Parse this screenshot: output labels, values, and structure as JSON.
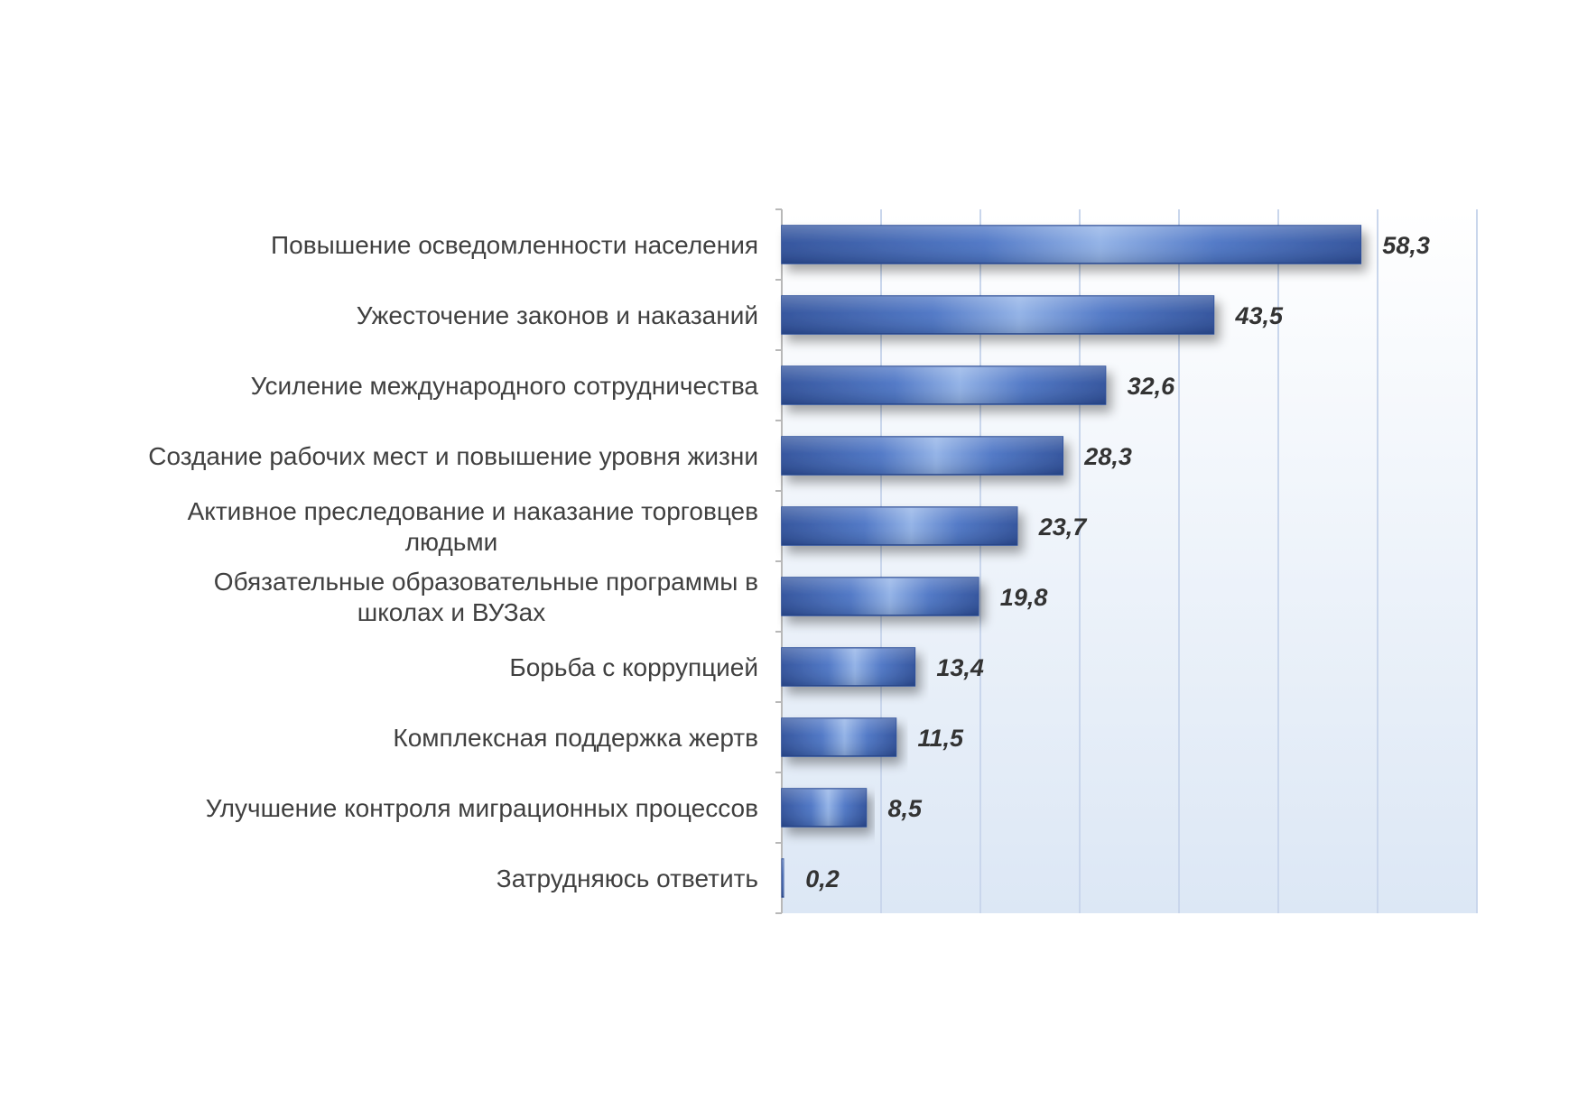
{
  "chart_data": {
    "type": "bar",
    "orientation": "horizontal",
    "categories": [
      [
        "Повышение осведомленности населения"
      ],
      [
        "Ужесточение законов и наказаний"
      ],
      [
        "Усиление международного сотрудничества"
      ],
      [
        "Создание рабочих мест и повышение уровня жизни"
      ],
      [
        "Активное преследование и наказание торговцев",
        "людьми"
      ],
      [
        "Обязательные образовательные программы в",
        "школах и ВУЗах"
      ],
      [
        "Борьба с коррупцией"
      ],
      [
        "Комплексная поддержка жертв"
      ],
      [
        "Улучшение контроля миграционных процессов"
      ],
      [
        "Затрудняюсь ответить"
      ]
    ],
    "values": [
      58.3,
      43.5,
      32.6,
      28.3,
      23.7,
      19.8,
      13.4,
      11.5,
      8.5,
      0.2
    ],
    "value_labels": [
      "58,3",
      "43,5",
      "32,6",
      "28,3",
      "23,7",
      "19,8",
      "13,4",
      "11,5",
      "8,5",
      "0,2"
    ],
    "xlim": [
      0,
      70
    ],
    "grid": "vertical",
    "x_tick_step": 10,
    "legend": "none",
    "bar_color": "#4a73c4",
    "bar_dark_color": "#2c4e9a",
    "bar_light_color": "#8fb0e6",
    "plot_background_top": "#ffffff",
    "plot_background_bottom": "#dce7f5",
    "grid_color": "#c9d6ec"
  }
}
